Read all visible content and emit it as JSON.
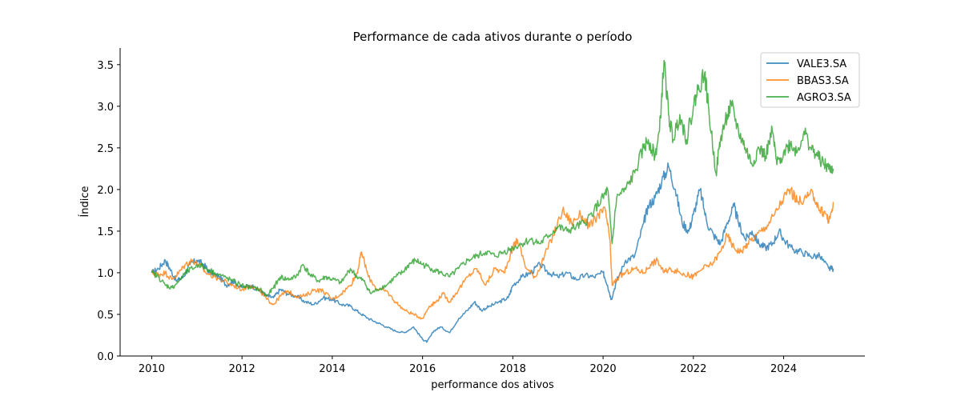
{
  "chart_data": {
    "type": "line",
    "title": "Performance de cada ativos durante o período",
    "xlabel": "performance dos ativos",
    "ylabel": "Índice",
    "xlim": [
      2009.3,
      2025.8
    ],
    "ylim": [
      0.0,
      3.7
    ],
    "x_ticks": [
      2010,
      2012,
      2014,
      2016,
      2018,
      2020,
      2022,
      2024
    ],
    "y_ticks": [
      0.0,
      0.5,
      1.0,
      1.5,
      2.0,
      2.5,
      3.0,
      3.5
    ],
    "x_tick_labels": [
      "2010",
      "2012",
      "2014",
      "2016",
      "2018",
      "2020",
      "2022",
      "2024"
    ],
    "y_tick_labels": [
      "0.0",
      "0.5",
      "1.0",
      "1.5",
      "2.0",
      "2.5",
      "3.0",
      "3.5"
    ],
    "grid": false,
    "legend_position": "top-right",
    "series": [
      {
        "name": "VALE3.SA",
        "color": "#1f77b4",
        "points": [
          [
            2010.0,
            1.0
          ],
          [
            2010.15,
            1.05
          ],
          [
            2010.3,
            1.15
          ],
          [
            2010.4,
            1.05
          ],
          [
            2010.55,
            0.9
          ],
          [
            2010.7,
            0.95
          ],
          [
            2010.85,
            1.1
          ],
          [
            2011.0,
            1.15
          ],
          [
            2011.15,
            1.1
          ],
          [
            2011.3,
            1.0
          ],
          [
            2011.5,
            0.95
          ],
          [
            2011.65,
            0.85
          ],
          [
            2011.8,
            0.9
          ],
          [
            2012.0,
            0.82
          ],
          [
            2012.2,
            0.85
          ],
          [
            2012.4,
            0.78
          ],
          [
            2012.55,
            0.72
          ],
          [
            2012.7,
            0.7
          ],
          [
            2012.85,
            0.8
          ],
          [
            2013.0,
            0.75
          ],
          [
            2013.2,
            0.72
          ],
          [
            2013.4,
            0.65
          ],
          [
            2013.6,
            0.62
          ],
          [
            2013.8,
            0.7
          ],
          [
            2014.0,
            0.68
          ],
          [
            2014.2,
            0.62
          ],
          [
            2014.4,
            0.6
          ],
          [
            2014.6,
            0.52
          ],
          [
            2014.8,
            0.45
          ],
          [
            2015.0,
            0.4
          ],
          [
            2015.2,
            0.35
          ],
          [
            2015.4,
            0.3
          ],
          [
            2015.6,
            0.28
          ],
          [
            2015.8,
            0.35
          ],
          [
            2016.0,
            0.2
          ],
          [
            2016.1,
            0.17
          ],
          [
            2016.25,
            0.3
          ],
          [
            2016.4,
            0.35
          ],
          [
            2016.6,
            0.28
          ],
          [
            2016.8,
            0.45
          ],
          [
            2017.0,
            0.55
          ],
          [
            2017.15,
            0.65
          ],
          [
            2017.3,
            0.55
          ],
          [
            2017.5,
            0.6
          ],
          [
            2017.7,
            0.65
          ],
          [
            2017.9,
            0.7
          ],
          [
            2018.0,
            0.85
          ],
          [
            2018.2,
            0.95
          ],
          [
            2018.4,
            1.0
          ],
          [
            2018.6,
            1.1
          ],
          [
            2018.8,
            1.0
          ],
          [
            2019.0,
            0.95
          ],
          [
            2019.2,
            1.0
          ],
          [
            2019.4,
            0.92
          ],
          [
            2019.6,
            0.97
          ],
          [
            2019.8,
            0.95
          ],
          [
            2020.0,
            1.0
          ],
          [
            2020.1,
            0.85
          ],
          [
            2020.18,
            0.68
          ],
          [
            2020.3,
            0.9
          ],
          [
            2020.5,
            1.15
          ],
          [
            2020.7,
            1.2
          ],
          [
            2020.9,
            1.6
          ],
          [
            2021.0,
            1.8
          ],
          [
            2021.15,
            1.9
          ],
          [
            2021.3,
            2.1
          ],
          [
            2021.45,
            2.28
          ],
          [
            2021.6,
            2.0
          ],
          [
            2021.75,
            1.6
          ],
          [
            2021.9,
            1.5
          ],
          [
            2022.0,
            1.7
          ],
          [
            2022.15,
            2.0
          ],
          [
            2022.3,
            1.6
          ],
          [
            2022.45,
            1.45
          ],
          [
            2022.6,
            1.35
          ],
          [
            2022.75,
            1.6
          ],
          [
            2022.9,
            1.8
          ],
          [
            2023.0,
            1.6
          ],
          [
            2023.15,
            1.4
          ],
          [
            2023.3,
            1.5
          ],
          [
            2023.45,
            1.35
          ],
          [
            2023.6,
            1.3
          ],
          [
            2023.75,
            1.35
          ],
          [
            2023.9,
            1.5
          ],
          [
            2024.0,
            1.4
          ],
          [
            2024.2,
            1.28
          ],
          [
            2024.4,
            1.25
          ],
          [
            2024.6,
            1.2
          ],
          [
            2024.8,
            1.2
          ],
          [
            2025.0,
            1.05
          ],
          [
            2025.1,
            1.05
          ]
        ]
      },
      {
        "name": "BBAS3.SA",
        "color": "#ff7f0e",
        "points": [
          [
            2010.0,
            1.0
          ],
          [
            2010.15,
            0.98
          ],
          [
            2010.3,
            1.0
          ],
          [
            2010.45,
            0.92
          ],
          [
            2010.6,
            1.0
          ],
          [
            2010.75,
            1.1
          ],
          [
            2010.9,
            1.15
          ],
          [
            2011.05,
            1.1
          ],
          [
            2011.2,
            1.0
          ],
          [
            2011.4,
            0.95
          ],
          [
            2011.6,
            0.9
          ],
          [
            2011.8,
            0.85
          ],
          [
            2012.0,
            0.8
          ],
          [
            2012.2,
            0.85
          ],
          [
            2012.4,
            0.78
          ],
          [
            2012.55,
            0.68
          ],
          [
            2012.7,
            0.62
          ],
          [
            2012.85,
            0.72
          ],
          [
            2013.0,
            0.78
          ],
          [
            2013.2,
            0.72
          ],
          [
            2013.4,
            0.72
          ],
          [
            2013.6,
            0.8
          ],
          [
            2013.8,
            0.78
          ],
          [
            2014.0,
            0.68
          ],
          [
            2014.2,
            0.75
          ],
          [
            2014.4,
            0.85
          ],
          [
            2014.55,
            1.0
          ],
          [
            2014.65,
            1.25
          ],
          [
            2014.8,
            0.95
          ],
          [
            2015.0,
            0.8
          ],
          [
            2015.2,
            0.78
          ],
          [
            2015.4,
            0.65
          ],
          [
            2015.6,
            0.55
          ],
          [
            2015.8,
            0.5
          ],
          [
            2016.0,
            0.45
          ],
          [
            2016.15,
            0.6
          ],
          [
            2016.3,
            0.65
          ],
          [
            2016.45,
            0.75
          ],
          [
            2016.6,
            0.65
          ],
          [
            2016.8,
            0.8
          ],
          [
            2017.0,
            0.95
          ],
          [
            2017.2,
            1.05
          ],
          [
            2017.4,
            0.85
          ],
          [
            2017.6,
            1.05
          ],
          [
            2017.8,
            1.0
          ],
          [
            2018.0,
            1.3
          ],
          [
            2018.1,
            1.4
          ],
          [
            2018.3,
            1.05
          ],
          [
            2018.5,
            0.95
          ],
          [
            2018.7,
            1.2
          ],
          [
            2018.9,
            1.45
          ],
          [
            2019.1,
            1.75
          ],
          [
            2019.3,
            1.6
          ],
          [
            2019.5,
            1.7
          ],
          [
            2019.7,
            1.55
          ],
          [
            2019.9,
            1.7
          ],
          [
            2020.05,
            1.75
          ],
          [
            2020.15,
            1.4
          ],
          [
            2020.2,
            0.85
          ],
          [
            2020.35,
            0.95
          ],
          [
            2020.5,
            1.0
          ],
          [
            2020.7,
            1.05
          ],
          [
            2020.9,
            1.0
          ],
          [
            2021.05,
            1.1
          ],
          [
            2021.2,
            1.15
          ],
          [
            2021.35,
            1.0
          ],
          [
            2021.5,
            1.05
          ],
          [
            2021.7,
            1.0
          ],
          [
            2021.9,
            0.97
          ],
          [
            2022.0,
            0.95
          ],
          [
            2022.2,
            1.05
          ],
          [
            2022.4,
            1.1
          ],
          [
            2022.6,
            1.25
          ],
          [
            2022.75,
            1.45
          ],
          [
            2022.9,
            1.3
          ],
          [
            2023.05,
            1.25
          ],
          [
            2023.2,
            1.35
          ],
          [
            2023.4,
            1.45
          ],
          [
            2023.6,
            1.55
          ],
          [
            2023.8,
            1.7
          ],
          [
            2024.0,
            1.9
          ],
          [
            2024.15,
            2.0
          ],
          [
            2024.3,
            1.85
          ],
          [
            2024.5,
            1.9
          ],
          [
            2024.65,
            1.95
          ],
          [
            2024.8,
            1.75
          ],
          [
            2024.95,
            1.7
          ],
          [
            2025.0,
            1.6
          ],
          [
            2025.1,
            1.85
          ]
        ]
      },
      {
        "name": "AGRO3.SA",
        "color": "#2ca02c",
        "points": [
          [
            2010.0,
            1.0
          ],
          [
            2010.15,
            0.95
          ],
          [
            2010.3,
            0.85
          ],
          [
            2010.45,
            0.82
          ],
          [
            2010.6,
            0.9
          ],
          [
            2010.75,
            1.0
          ],
          [
            2010.9,
            1.05
          ],
          [
            2011.05,
            1.1
          ],
          [
            2011.2,
            1.05
          ],
          [
            2011.4,
            1.0
          ],
          [
            2011.6,
            0.95
          ],
          [
            2011.8,
            0.9
          ],
          [
            2012.0,
            0.85
          ],
          [
            2012.2,
            0.82
          ],
          [
            2012.4,
            0.8
          ],
          [
            2012.55,
            0.72
          ],
          [
            2012.7,
            0.82
          ],
          [
            2012.85,
            0.95
          ],
          [
            2013.0,
            0.92
          ],
          [
            2013.2,
            0.95
          ],
          [
            2013.35,
            1.1
          ],
          [
            2013.5,
            0.98
          ],
          [
            2013.7,
            0.9
          ],
          [
            2013.85,
            0.95
          ],
          [
            2014.0,
            0.92
          ],
          [
            2014.2,
            0.88
          ],
          [
            2014.4,
            1.05
          ],
          [
            2014.55,
            0.95
          ],
          [
            2014.7,
            0.9
          ],
          [
            2014.85,
            0.75
          ],
          [
            2015.0,
            0.8
          ],
          [
            2015.2,
            0.85
          ],
          [
            2015.4,
            0.95
          ],
          [
            2015.55,
            1.0
          ],
          [
            2015.7,
            1.1
          ],
          [
            2015.85,
            1.15
          ],
          [
            2016.0,
            1.1
          ],
          [
            2016.2,
            1.05
          ],
          [
            2016.4,
            1.0
          ],
          [
            2016.6,
            0.95
          ],
          [
            2016.8,
            1.05
          ],
          [
            2017.0,
            1.15
          ],
          [
            2017.2,
            1.2
          ],
          [
            2017.4,
            1.25
          ],
          [
            2017.6,
            1.2
          ],
          [
            2017.8,
            1.25
          ],
          [
            2018.0,
            1.3
          ],
          [
            2018.2,
            1.35
          ],
          [
            2018.4,
            1.4
          ],
          [
            2018.6,
            1.35
          ],
          [
            2018.8,
            1.45
          ],
          [
            2019.0,
            1.55
          ],
          [
            2019.2,
            1.5
          ],
          [
            2019.4,
            1.55
          ],
          [
            2019.6,
            1.6
          ],
          [
            2019.8,
            1.75
          ],
          [
            2020.0,
            1.9
          ],
          [
            2020.1,
            2.0
          ],
          [
            2020.2,
            1.35
          ],
          [
            2020.3,
            1.9
          ],
          [
            2020.5,
            2.0
          ],
          [
            2020.7,
            2.2
          ],
          [
            2020.9,
            2.5
          ],
          [
            2021.0,
            2.6
          ],
          [
            2021.15,
            2.4
          ],
          [
            2021.25,
            2.7
          ],
          [
            2021.35,
            3.55
          ],
          [
            2021.45,
            2.9
          ],
          [
            2021.55,
            2.6
          ],
          [
            2021.7,
            2.9
          ],
          [
            2021.85,
            2.6
          ],
          [
            2022.0,
            3.0
          ],
          [
            2022.1,
            3.2
          ],
          [
            2022.25,
            3.4
          ],
          [
            2022.35,
            2.9
          ],
          [
            2022.5,
            2.2
          ],
          [
            2022.6,
            2.6
          ],
          [
            2022.75,
            2.9
          ],
          [
            2022.85,
            3.0
          ],
          [
            2023.0,
            2.7
          ],
          [
            2023.15,
            2.5
          ],
          [
            2023.3,
            2.3
          ],
          [
            2023.45,
            2.5
          ],
          [
            2023.6,
            2.4
          ],
          [
            2023.75,
            2.7
          ],
          [
            2023.85,
            2.3
          ],
          [
            2024.0,
            2.45
          ],
          [
            2024.15,
            2.55
          ],
          [
            2024.3,
            2.45
          ],
          [
            2024.45,
            2.7
          ],
          [
            2024.6,
            2.5
          ],
          [
            2024.75,
            2.4
          ],
          [
            2024.9,
            2.3
          ],
          [
            2025.0,
            2.25
          ],
          [
            2025.1,
            2.25
          ]
        ]
      }
    ]
  }
}
